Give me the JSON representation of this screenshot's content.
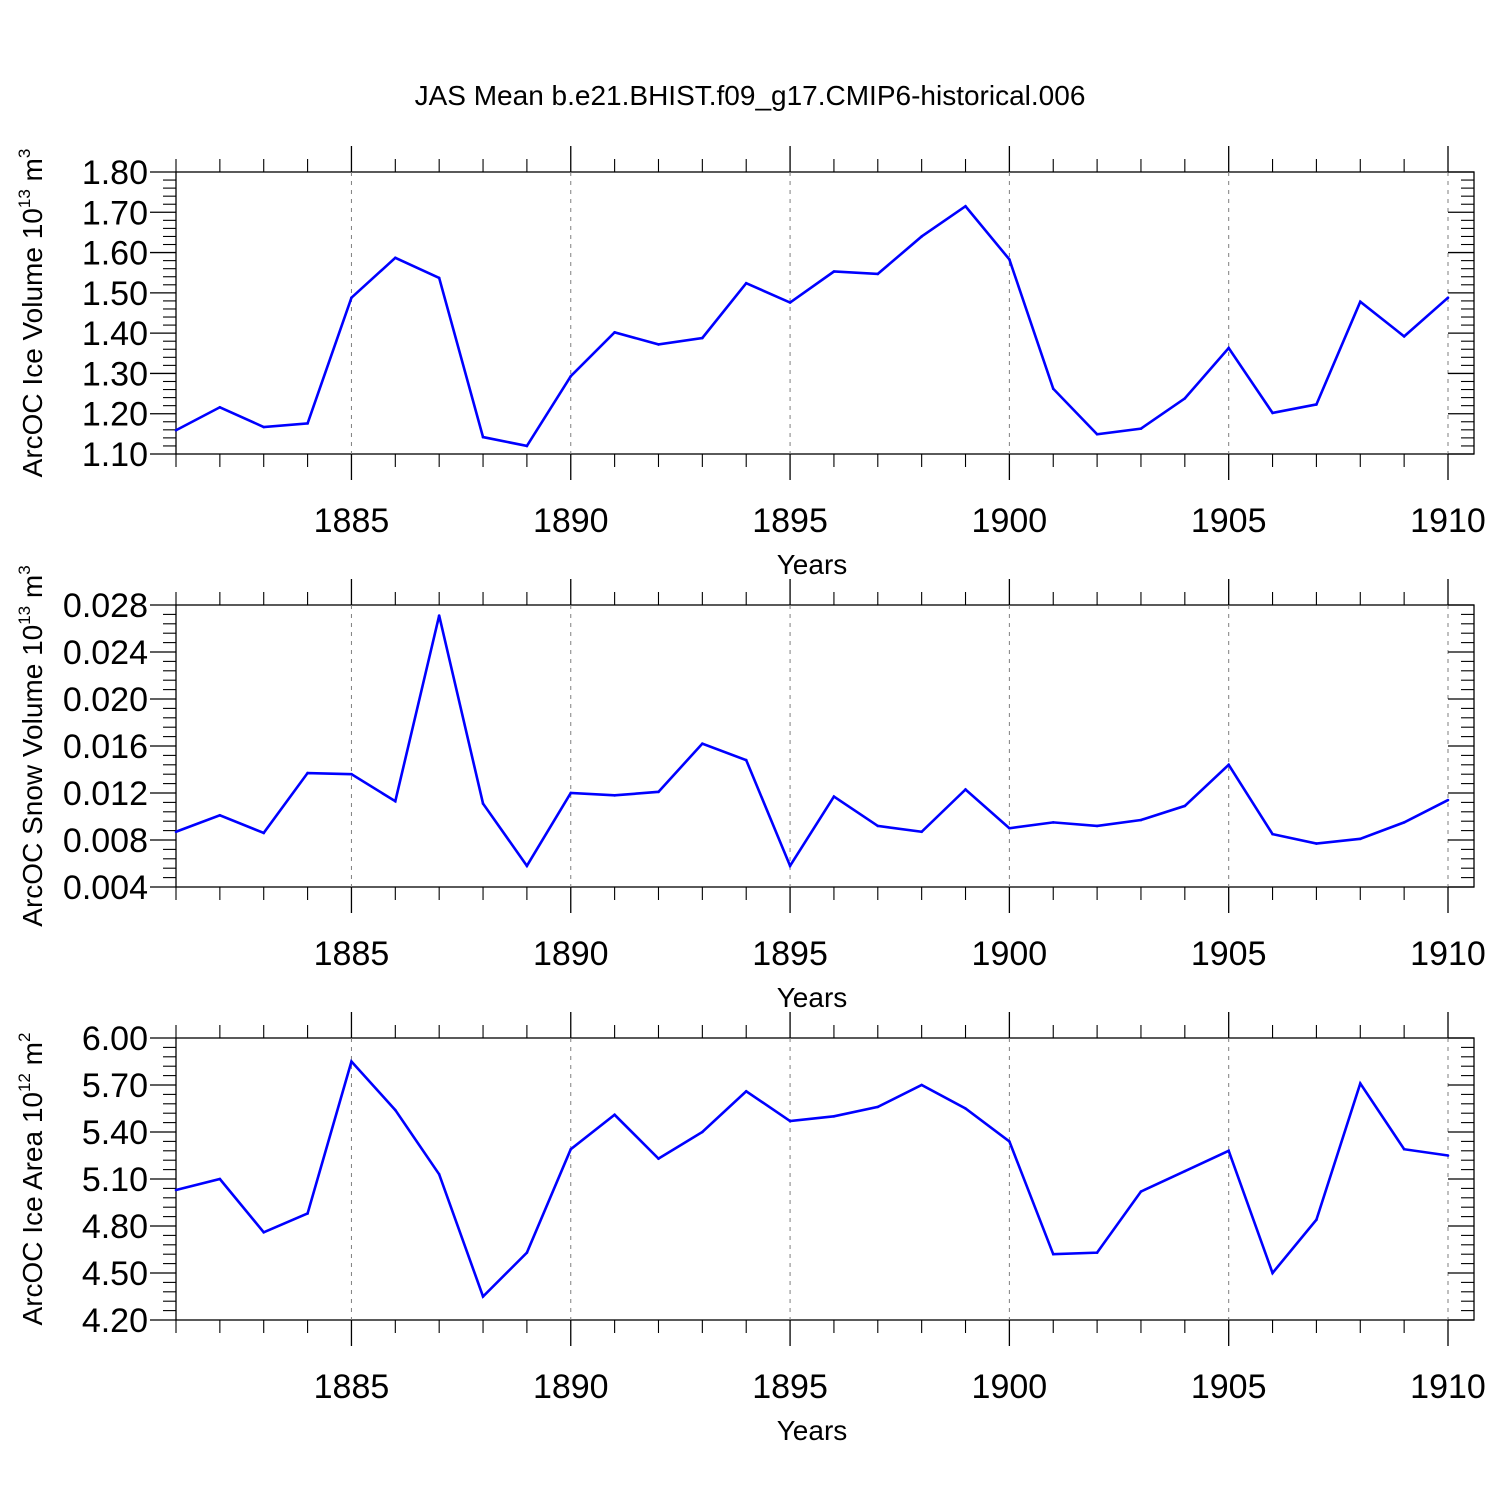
{
  "figure": {
    "title": "JAS Mean b.e21.BHIST.f09_g17.CMIP6-historical.006"
  },
  "colors": {
    "series": "#0000ff",
    "axis": "#000000",
    "grid": "#7f7f7f"
  },
  "chart_data": [
    {
      "type": "line",
      "title": "JAS Mean b.e21.BHIST.f09_g17.CMIP6-historical.006",
      "xlabel": "Years",
      "ylabel": {
        "base": "ArcOC Ice Volume 10",
        "exp1": "13",
        "mid": " m",
        "exp2": "3"
      },
      "xlim": [
        1881,
        1910
      ],
      "ylim": [
        1.1,
        1.8
      ],
      "yticks": [
        "1.10",
        "1.20",
        "1.30",
        "1.40",
        "1.50",
        "1.60",
        "1.70",
        "1.80"
      ],
      "xticks": [
        "1885",
        "1890",
        "1895",
        "1900",
        "1905",
        "1910"
      ],
      "grid": "vertical dashed at major x ticks",
      "x": [
        1881,
        1882,
        1883,
        1884,
        1885,
        1886,
        1887,
        1888,
        1889,
        1890,
        1891,
        1892,
        1893,
        1894,
        1895,
        1896,
        1897,
        1898,
        1899,
        1900,
        1901,
        1902,
        1903,
        1904,
        1905,
        1906,
        1907,
        1908,
        1909,
        1910
      ],
      "values": [
        1.159,
        1.216,
        1.167,
        1.176,
        1.488,
        1.587,
        1.537,
        1.142,
        1.12,
        1.293,
        1.402,
        1.372,
        1.388,
        1.524,
        1.476,
        1.553,
        1.547,
        1.64,
        1.715,
        1.583,
        1.262,
        1.149,
        1.163,
        1.238,
        1.363,
        1.202,
        1.223,
        1.478,
        1.392,
        1.488
      ]
    },
    {
      "type": "line",
      "xlabel": "Years",
      "ylabel": {
        "base": "ArcOC Snow Volume 10",
        "exp1": "13",
        "mid": " m",
        "exp2": "3"
      },
      "xlim": [
        1881,
        1910
      ],
      "ylim": [
        0.004,
        0.028
      ],
      "yticks": [
        "0.004",
        "0.008",
        "0.012",
        "0.016",
        "0.020",
        "0.024",
        "0.028"
      ],
      "xticks": [
        "1885",
        "1890",
        "1895",
        "1900",
        "1905",
        "1910"
      ],
      "grid": "vertical dashed at major x ticks",
      "x": [
        1881,
        1882,
        1883,
        1884,
        1885,
        1886,
        1887,
        1888,
        1889,
        1890,
        1891,
        1892,
        1893,
        1894,
        1895,
        1896,
        1897,
        1898,
        1899,
        1900,
        1901,
        1902,
        1903,
        1904,
        1905,
        1906,
        1907,
        1908,
        1909,
        1910
      ],
      "values": [
        0.0087,
        0.0101,
        0.0086,
        0.0137,
        0.0136,
        0.0113,
        0.0271,
        0.0111,
        0.0058,
        0.012,
        0.0118,
        0.0121,
        0.0162,
        0.0148,
        0.0058,
        0.0117,
        0.0092,
        0.0087,
        0.0123,
        0.009,
        0.0095,
        0.0092,
        0.0097,
        0.0109,
        0.0144,
        0.0085,
        0.0077,
        0.0081,
        0.0095,
        0.0114
      ]
    },
    {
      "type": "line",
      "xlabel": "Years",
      "ylabel": {
        "base": "ArcOC Ice Area 10",
        "exp1": "12",
        "mid": " m",
        "exp2": "2"
      },
      "xlim": [
        1881,
        1910
      ],
      "ylim": [
        4.2,
        6.0
      ],
      "yticks": [
        "4.20",
        "4.50",
        "4.80",
        "5.10",
        "5.40",
        "5.70",
        "6.00"
      ],
      "xticks": [
        "1885",
        "1890",
        "1895",
        "1900",
        "1905",
        "1910"
      ],
      "grid": "vertical dashed at major x ticks",
      "x": [
        1881,
        1882,
        1883,
        1884,
        1885,
        1886,
        1887,
        1888,
        1889,
        1890,
        1891,
        1892,
        1893,
        1894,
        1895,
        1896,
        1897,
        1898,
        1899,
        1900,
        1901,
        1902,
        1903,
        1904,
        1905,
        1906,
        1907,
        1908,
        1909,
        1910
      ],
      "values": [
        5.03,
        5.1,
        4.76,
        4.88,
        5.85,
        5.54,
        5.13,
        4.35,
        4.63,
        5.29,
        5.51,
        5.23,
        5.4,
        5.66,
        5.47,
        5.5,
        5.56,
        5.7,
        5.55,
        5.34,
        4.62,
        4.63,
        5.02,
        5.15,
        5.28,
        4.5,
        4.84,
        5.71,
        5.29,
        5.25
      ]
    }
  ]
}
